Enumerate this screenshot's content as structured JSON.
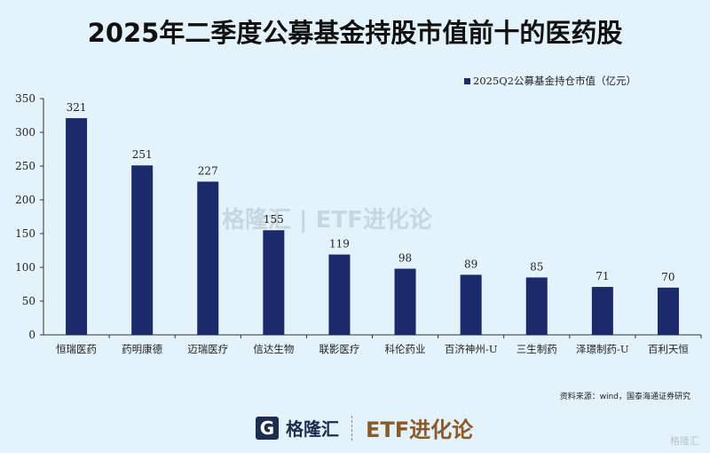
{
  "title": "2025年二季度公募基金持股市值前十的医药股",
  "chart_data": {
    "type": "bar",
    "title": "2025年二季度公募基金持股市值前十的医药股",
    "categories": [
      "恒瑞医药",
      "药明康德",
      "迈瑞医疗",
      "信达生物",
      "联影医疗",
      "科伦药业",
      "百济神州-U",
      "三生制药",
      "泽璟制药-U",
      "百利天恒"
    ],
    "series": [
      {
        "name": "2025Q2公募基金持仓市值（亿元）",
        "values": [
          321,
          251,
          227,
          155,
          119,
          98,
          89,
          85,
          71,
          70
        ]
      }
    ],
    "ylim": [
      0,
      350
    ],
    "yticks": [
      0,
      50,
      100,
      150,
      200,
      250,
      300,
      350
    ],
    "grid": false,
    "legend": "top-right",
    "bar_color": "#1b2a6b",
    "xlabel": "",
    "ylabel": ""
  },
  "source": "资料来源：wind，国泰海通证券研究",
  "watermark": "格隆汇 | ETF进化论",
  "footer": {
    "logo_letter": "G",
    "brand": "格隆汇",
    "column": "ETF进化论"
  },
  "corner_mark": "格隆汇"
}
